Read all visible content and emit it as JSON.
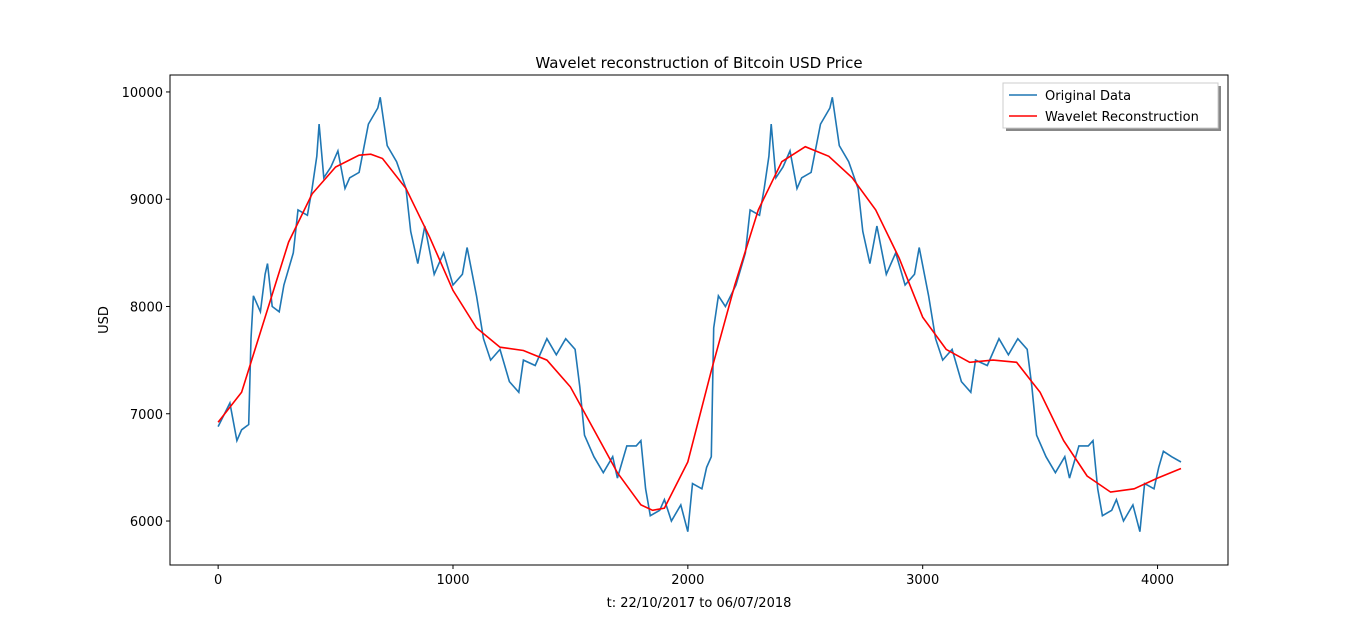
{
  "chart_data": {
    "type": "line",
    "title": "Wavelet reconstruction of Bitcoin USD Price",
    "x_label": "t: 22/10/2017 to 06/07/2018",
    "y_label": "USD",
    "xlim": [
      -205,
      4300
    ],
    "ylim": [
      5590,
      10158
    ],
    "xticks": [
      0,
      1000,
      2000,
      3000,
      4000
    ],
    "yticks": [
      6000,
      7000,
      8000,
      9000,
      10000
    ],
    "legend": "upper right",
    "series": [
      {
        "name": "Original Data",
        "color": "#1f77b4",
        "x": [
          0,
          50,
          80,
          100,
          130,
          140,
          150,
          180,
          200,
          210,
          230,
          260,
          280,
          320,
          340,
          380,
          400,
          420,
          430,
          450,
          480,
          510,
          540,
          560,
          600,
          640,
          680,
          690,
          720,
          760,
          800,
          820,
          850,
          880,
          920,
          960,
          1000,
          1040,
          1060,
          1100,
          1130,
          1160,
          1200,
          1240,
          1280,
          1300,
          1350,
          1400,
          1440,
          1480,
          1520,
          1540,
          1560,
          1600,
          1640,
          1680,
          1700,
          1740,
          1780,
          1800,
          1820,
          1840,
          1880,
          1900,
          1930,
          1970,
          2000,
          2020,
          2060,
          2080,
          2100,
          2110,
          2130,
          2160,
          2205,
          2245,
          2265,
          2305,
          2325,
          2345,
          2355,
          2375,
          2405,
          2435,
          2465,
          2485,
          2525,
          2565,
          2605,
          2615,
          2645,
          2685,
          2725,
          2745,
          2775,
          2805,
          2845,
          2885,
          2925,
          2965,
          2985,
          3025,
          3055,
          3085,
          3125,
          3165,
          3205,
          3225,
          3275,
          3325,
          3365,
          3405,
          3445,
          3465,
          3485,
          3525,
          3565,
          3605,
          3625,
          3665,
          3705,
          3725,
          3745,
          3765,
          3805,
          3825,
          3855,
          3895,
          3925,
          3945,
          3985,
          4005,
          4025,
          4060,
          4100
        ],
        "values": [
          6880,
          7100,
          6750,
          6850,
          6900,
          7700,
          8100,
          7950,
          8300,
          8400,
          8000,
          7950,
          8200,
          8500,
          8900,
          8850,
          9100,
          9400,
          9700,
          9200,
          9300,
          9450,
          9100,
          9200,
          9250,
          9700,
          9850,
          9950,
          9500,
          9350,
          9100,
          8700,
          8400,
          8750,
          8300,
          8500,
          8200,
          8300,
          8550,
          8100,
          7700,
          7500,
          7600,
          7300,
          7200,
          7500,
          7450,
          7700,
          7550,
          7700,
          7600,
          7250,
          6800,
          6600,
          6450,
          6600,
          6400,
          6700,
          6700,
          6750,
          6300,
          6050,
          6100,
          6200,
          6000,
          6150,
          5900,
          6350,
          6300,
          6500,
          6600,
          7800,
          8100,
          8000,
          8200,
          8500,
          8900,
          8850,
          9100,
          9400,
          9700,
          9200,
          9300,
          9450,
          9100,
          9200,
          9250,
          9700,
          9850,
          9950,
          9500,
          9350,
          9100,
          8700,
          8400,
          8750,
          8300,
          8500,
          8200,
          8300,
          8550,
          8100,
          7700,
          7500,
          7600,
          7300,
          7200,
          7500,
          7450,
          7700,
          7550,
          7700,
          7600,
          7250,
          6800,
          6600,
          6450,
          6600,
          6400,
          6700,
          6700,
          6750,
          6300,
          6050,
          6100,
          6200,
          6000,
          6150,
          5900,
          6350,
          6300,
          6500,
          6650,
          6600,
          6550
        ]
      },
      {
        "name": "Wavelet Reconstruction",
        "color": "#ff0000",
        "x": [
          0,
          100,
          200,
          300,
          400,
          500,
          600,
          650,
          700,
          800,
          900,
          1000,
          1100,
          1200,
          1300,
          1400,
          1500,
          1600,
          1700,
          1800,
          1850,
          1900,
          2000,
          2100,
          2200,
          2300,
          2400,
          2500,
          2600,
          2700,
          2800,
          2900,
          3000,
          3100,
          3200,
          3300,
          3400,
          3500,
          3600,
          3700,
          3800,
          3900,
          4000,
          4100
        ],
        "values": [
          6920,
          7200,
          7900,
          8600,
          9050,
          9300,
          9410,
          9420,
          9380,
          9100,
          8650,
          8150,
          7800,
          7620,
          7590,
          7500,
          7250,
          6850,
          6450,
          6150,
          6100,
          6120,
          6550,
          7400,
          8200,
          8900,
          9350,
          9490,
          9400,
          9200,
          8900,
          8450,
          7900,
          7600,
          7480,
          7500,
          7480,
          7200,
          6750,
          6420,
          6270,
          6300,
          6400,
          6490
        ]
      }
    ]
  }
}
